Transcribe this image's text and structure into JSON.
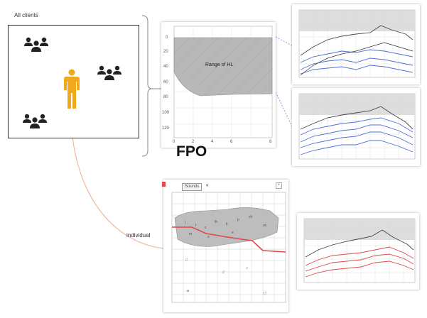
{
  "labels": {
    "all_clients": "All clients",
    "fpo": "FPO",
    "individual": "individual",
    "range_of_hl": "Range of HL"
  },
  "icons": {
    "group": "group-of-people-icon",
    "person": "person-icon"
  },
  "colors": {
    "person": "#f0a81e",
    "curve_blue": "#4f6fd8",
    "curve_red": "#e0474a",
    "connector": "#f2b8a0",
    "shade": "#b8b8b8"
  },
  "range_chart": {
    "y_ticks": [
      "0",
      "20",
      "40",
      "60",
      "80",
      "100",
      "120"
    ],
    "x_ticks": [
      "0",
      "2",
      "4",
      "6",
      "8"
    ]
  },
  "individual_chart": {
    "dropdown": "Sounds"
  }
}
